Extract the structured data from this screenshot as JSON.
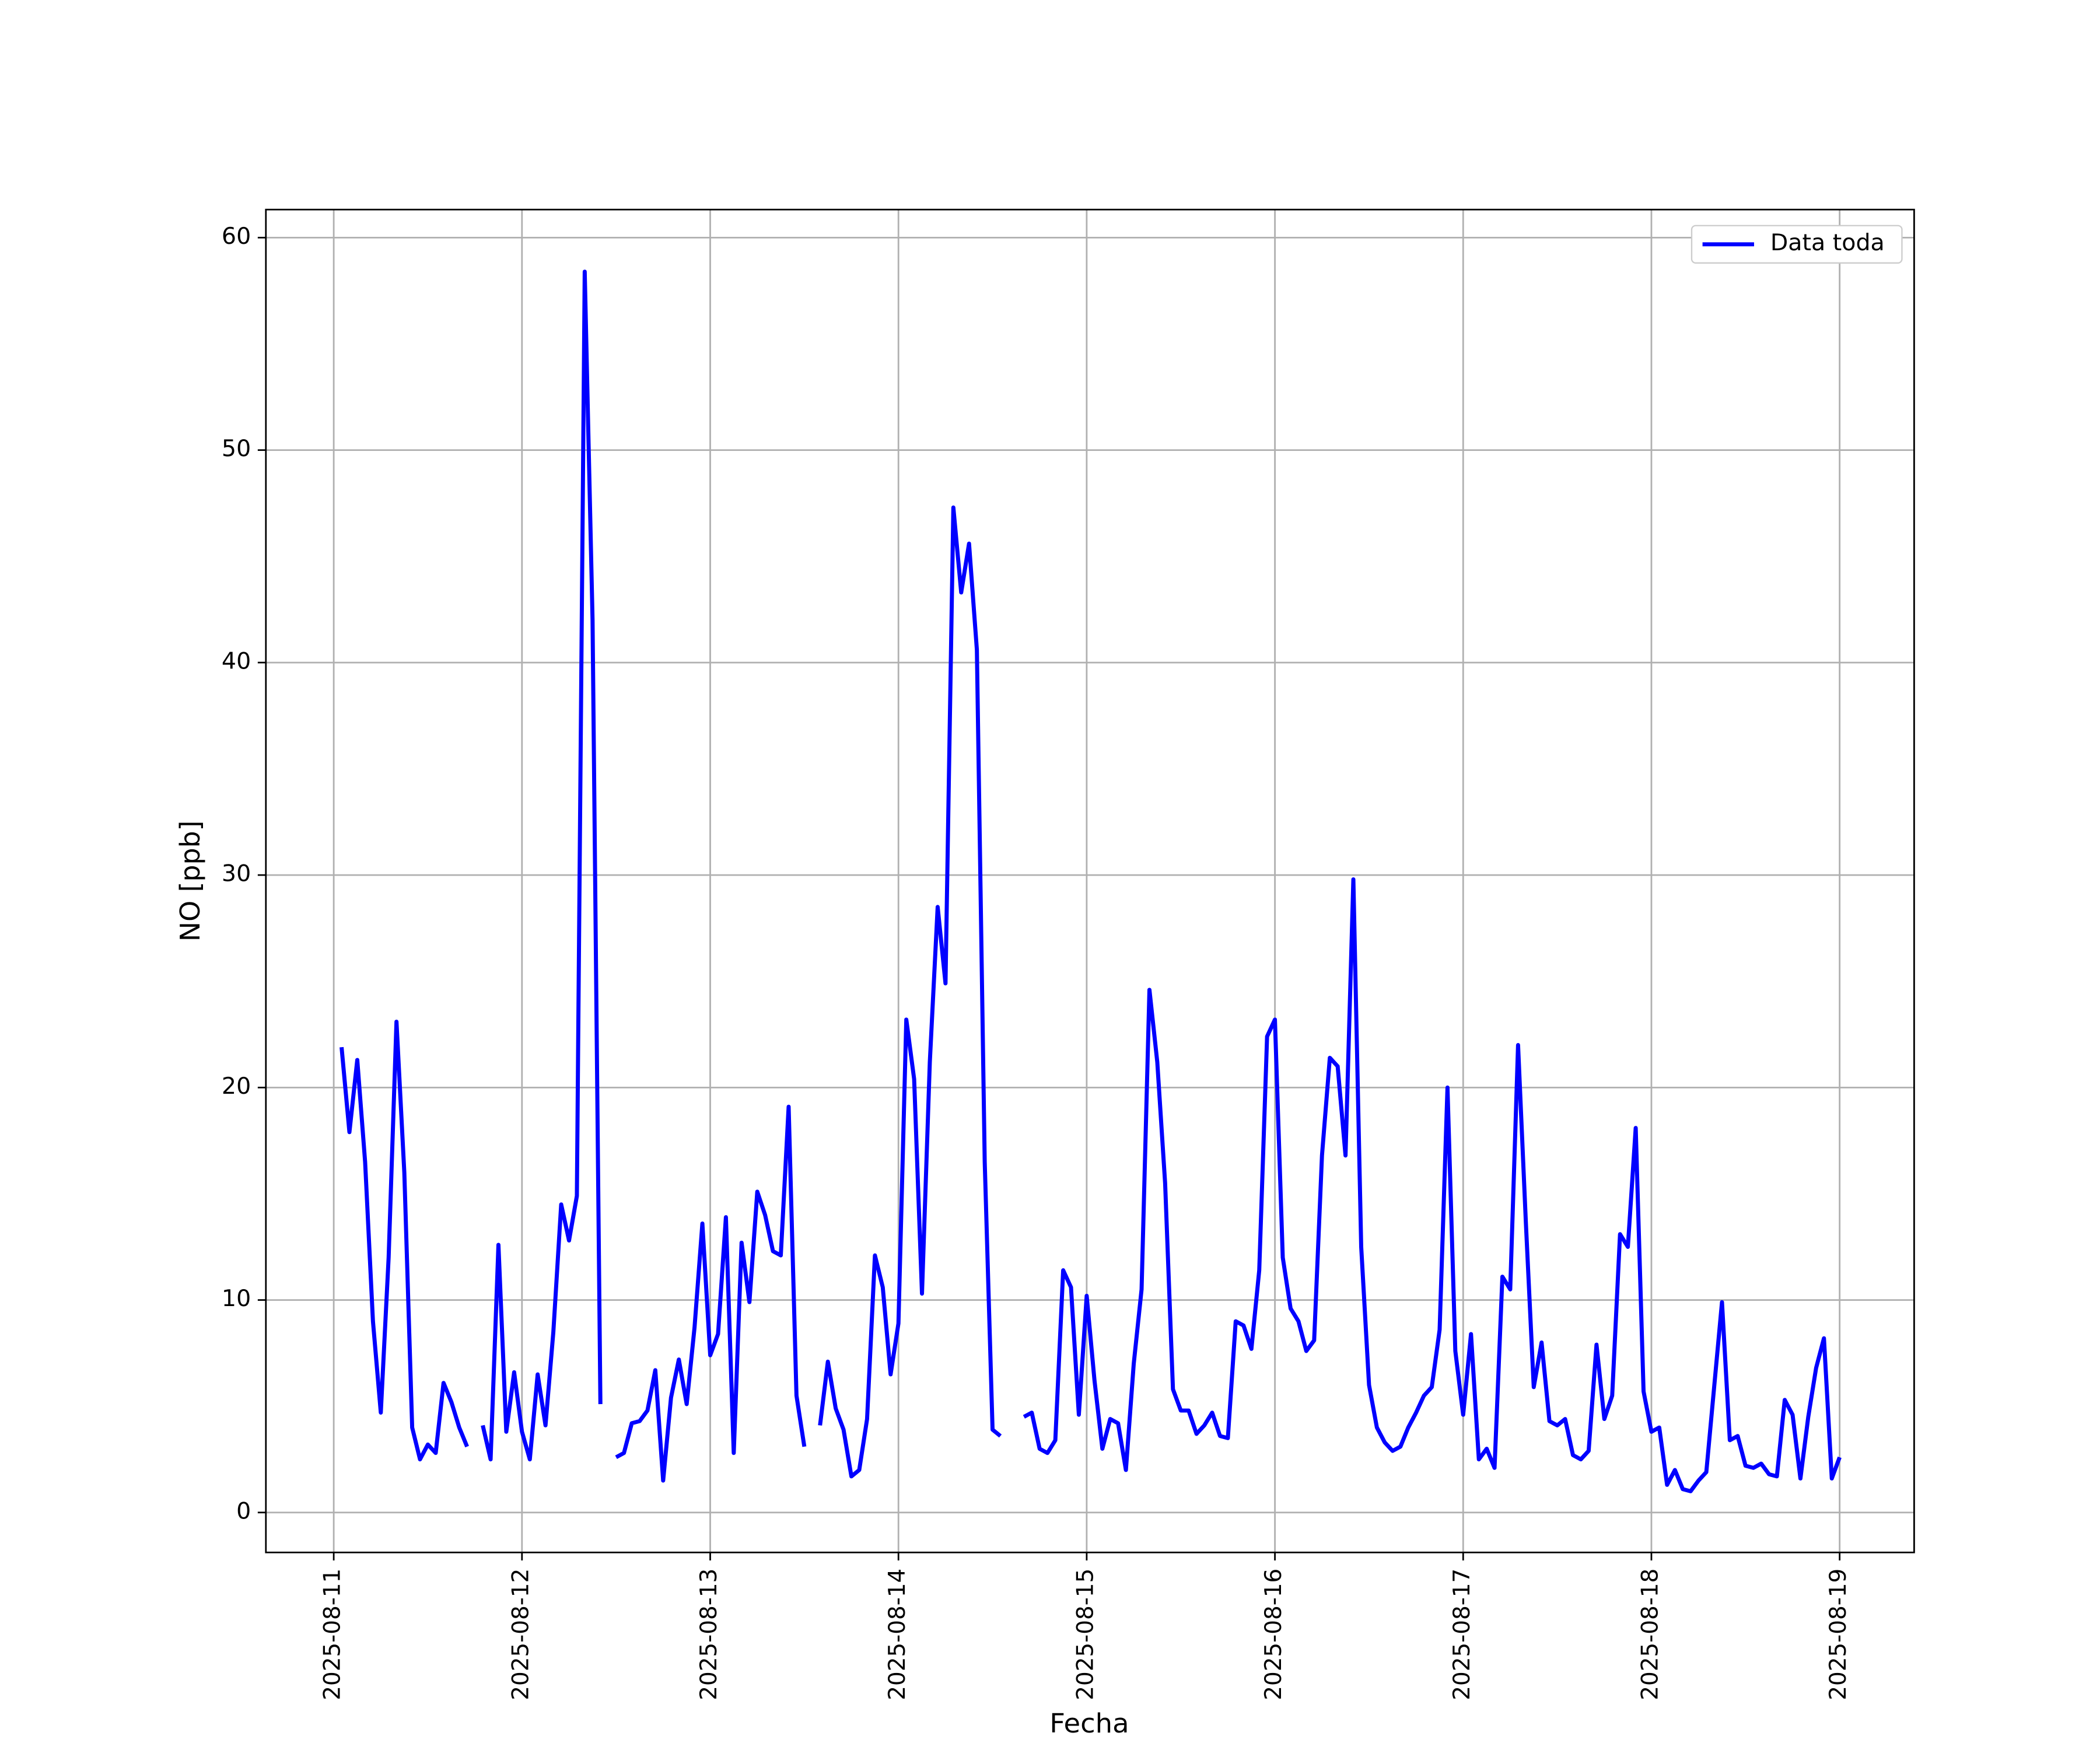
{
  "chart_data": {
    "type": "line",
    "xlabel": "Fecha",
    "ylabel": "NO [ppb]",
    "x": [
      1,
      2,
      3,
      4,
      5,
      6,
      7,
      8,
      9,
      10,
      11,
      12,
      13,
      14,
      15,
      16,
      17,
      18,
      19,
      20,
      21,
      22,
      23,
      24,
      25,
      26,
      27,
      28,
      29,
      30,
      31,
      32,
      33,
      34,
      35,
      36,
      37,
      38,
      39,
      40,
      41,
      42,
      43,
      44,
      45,
      46,
      47,
      48,
      49,
      50,
      51,
      52,
      53,
      54,
      55,
      56,
      57,
      58,
      59,
      60,
      61,
      62,
      63,
      64,
      65,
      66,
      67,
      68,
      69,
      70,
      71,
      72,
      73,
      74,
      75,
      76,
      77,
      78,
      79,
      80,
      81,
      82,
      83,
      84,
      85,
      86,
      87,
      88,
      89,
      90,
      91,
      92,
      93,
      94,
      95,
      96,
      97,
      98,
      99,
      100,
      101,
      102,
      103,
      104,
      105,
      106,
      107,
      108,
      109,
      110,
      111,
      112,
      113,
      114,
      115,
      116,
      117,
      118,
      119,
      120,
      121,
      122,
      123,
      124,
      125,
      126,
      127,
      128,
      129,
      130,
      131,
      132,
      133,
      134,
      135,
      136,
      137,
      138,
      139,
      140,
      141,
      142,
      143,
      144,
      145,
      146,
      147,
      148,
      149,
      150,
      151,
      152,
      153,
      154,
      155,
      156,
      157,
      158,
      159,
      160,
      161,
      162,
      163,
      164,
      165,
      166,
      167,
      168,
      169,
      170,
      171,
      172,
      173,
      174,
      175,
      176,
      177,
      178,
      179,
      180,
      181,
      182,
      183,
      184,
      185,
      186,
      187,
      188,
      189,
      190,
      191,
      192
    ],
    "series": [
      {
        "name": "Data toda",
        "color": "#0000ff",
        "values": [
          21.9,
          17.9,
          21.3,
          16.5,
          9,
          4.7,
          12,
          23.1,
          16,
          4,
          2.5,
          3.2,
          2.8,
          6.1,
          5.2,
          4,
          3.1,
          null,
          4.1,
          2.5,
          12.6,
          3.8,
          6.6,
          3.8,
          2.5,
          6.5,
          4.1,
          8.5,
          14.5,
          12.8,
          14.9,
          58.4,
          42,
          5.1,
          null,
          2.6,
          2.8,
          4.2,
          4.3,
          4.8,
          6.7,
          1.5,
          5.4,
          7.2,
          5.1,
          8.7,
          13.6,
          7.4,
          8.4,
          13.9,
          2.8,
          12.7,
          9.9,
          15.1,
          14,
          12.3,
          12.1,
          19.1,
          5.5,
          3.1,
          null,
          4.1,
          7.1,
          4.9,
          3.9,
          1.7,
          2,
          4.4,
          12.1,
          10.6,
          6.5,
          8.9,
          23.2,
          20.4,
          10.3,
          21.2,
          28.5,
          24.9,
          47.3,
          43.3,
          45.6,
          40.6,
          16.5,
          3.9,
          3.6,
          null,
          null,
          4.5,
          4.7,
          3,
          2.8,
          3.4,
          11.4,
          10.6,
          4.6,
          10.2,
          6.2,
          3,
          4.4,
          4.2,
          2,
          7,
          10.5,
          24.6,
          21.2,
          15.5,
          5.8,
          4.8,
          4.8,
          3.7,
          4.1,
          4.7,
          3.6,
          3.5,
          9,
          8.8,
          7.7,
          11.4,
          22.4,
          23.2,
          12,
          9.6,
          9,
          7.6,
          8.1,
          16.8,
          21.4,
          21,
          16.8,
          29.8,
          12.5,
          6,
          4,
          3.3,
          2.9,
          3.1,
          4,
          4.7,
          5.5,
          5.9,
          8.6,
          20,
          7.6,
          4.6,
          8.4,
          2.5,
          3,
          2.1,
          11.1,
          10.5,
          22,
          13.6,
          5.9,
          8,
          4.3,
          4.1,
          4.4,
          2.7,
          2.5,
          2.9,
          7.9,
          4.4,
          5.5,
          13.1,
          12.5,
          18.1,
          5.7,
          3.8,
          4,
          1.3,
          2,
          1.1,
          1,
          1.5,
          1.9,
          5.9,
          9.9,
          3.4,
          3.6,
          2.2,
          2.1,
          2.3,
          1.8,
          1.7,
          5.3,
          4.6,
          1.6,
          4.5,
          6.8,
          8.2,
          1.6,
          2.6
        ]
      }
    ],
    "xlim": [
      -8.65,
      201.5
    ],
    "xticks": [
      {
        "value": 0,
        "label": "2025-08-11"
      },
      {
        "value": 24,
        "label": "2025-08-12"
      },
      {
        "value": 48,
        "label": "2025-08-13"
      },
      {
        "value": 72,
        "label": "2025-08-14"
      },
      {
        "value": 96,
        "label": "2025-08-15"
      },
      {
        "value": 120,
        "label": "2025-08-16"
      },
      {
        "value": 144,
        "label": "2025-08-17"
      },
      {
        "value": 168,
        "label": "2025-08-18"
      },
      {
        "value": 192,
        "label": "2025-08-19"
      }
    ],
    "ylim": [
      -1.88,
      61.32
    ],
    "yticks": [
      0,
      10,
      20,
      30,
      40,
      50,
      60
    ],
    "grid": true,
    "legend": "upper right"
  }
}
